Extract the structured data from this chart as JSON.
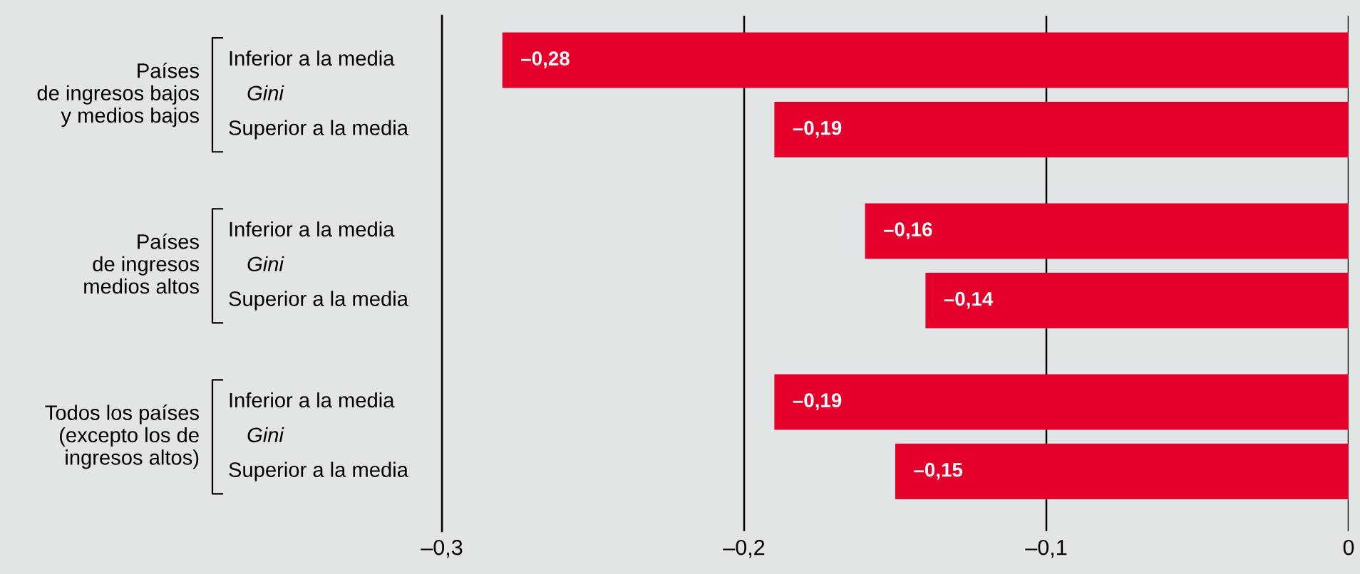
{
  "chart_data": {
    "type": "bar",
    "orientation": "horizontal",
    "categories": [
      "Inferior a la media",
      "Superior a la media",
      "Inferior a la media",
      "Superior a la media",
      "Inferior a la media",
      "Superior a la media"
    ],
    "values": [
      -0.28,
      -0.19,
      -0.16,
      -0.14,
      -0.19,
      -0.15
    ],
    "value_labels": [
      "–0,28",
      "–0,19",
      "–0,16",
      "–0,14",
      "–0,19",
      "–0,15"
    ],
    "color": "#e4002b",
    "xlim": [
      -0.3,
      0
    ],
    "xticks": [
      {
        "value": -0.3,
        "label": "–0,3"
      },
      {
        "value": -0.2,
        "label": "–0,2"
      },
      {
        "value": -0.1,
        "label": "–0,1"
      },
      {
        "value": 0,
        "label": "0"
      }
    ],
    "grid": "x",
    "annotations": [
      "Países\nde ingresos bajos\ny medios bajos",
      "Gini",
      "Países\nde ingresos\nmedios altos",
      "Gini",
      "Todos los países\n(excepto los de\ningresos altos)",
      "Gini"
    ]
  }
}
